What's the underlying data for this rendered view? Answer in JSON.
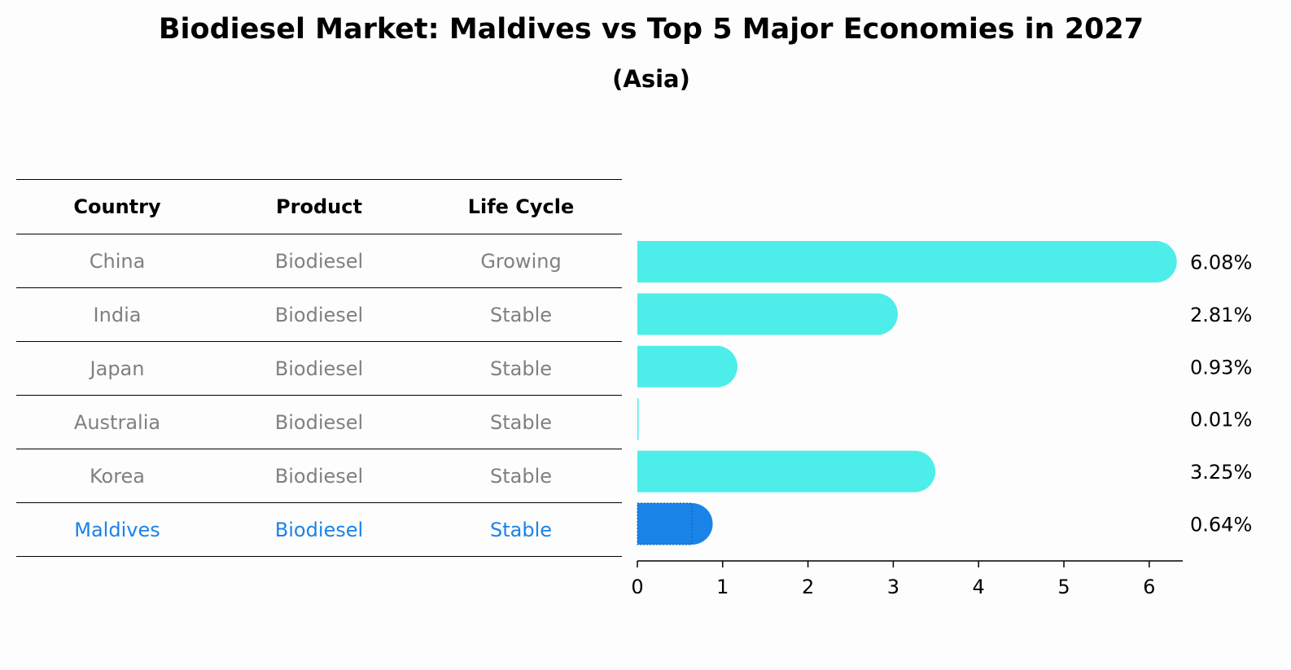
{
  "title": "Biodiesel Market: Maldives vs Top 5 Major Economies in 2027",
  "subtitle": "(Asia)",
  "table": {
    "headers": [
      "Country",
      "Product",
      "Life Cycle"
    ],
    "rows": [
      [
        "China",
        "Biodiesel",
        "Growing"
      ],
      [
        "India",
        "Biodiesel",
        "Stable"
      ],
      [
        "Japan",
        "Biodiesel",
        "Stable"
      ],
      [
        "Australia",
        "Biodiesel",
        "Stable"
      ],
      [
        "Korea",
        "Biodiesel",
        "Stable"
      ],
      [
        "Maldives",
        "Biodiesel",
        "Stable"
      ]
    ]
  },
  "colors": {
    "bar": "#4deeea",
    "highlight": "#1a83e8",
    "muted_text": "#808080"
  },
  "chart_data": {
    "type": "bar",
    "orientation": "horizontal",
    "categories": [
      "China",
      "India",
      "Japan",
      "Australia",
      "Korea",
      "Maldives"
    ],
    "values": [
      6.08,
      2.81,
      0.93,
      0.01,
      3.25,
      0.64
    ],
    "value_labels": [
      "6.08%",
      "2.81%",
      "0.93%",
      "0.01%",
      "3.25%",
      "0.64%"
    ],
    "highlight": "Maldives",
    "xticks": [
      0,
      1,
      2,
      3,
      4,
      5,
      6
    ],
    "xlim": [
      0,
      6.4
    ]
  }
}
